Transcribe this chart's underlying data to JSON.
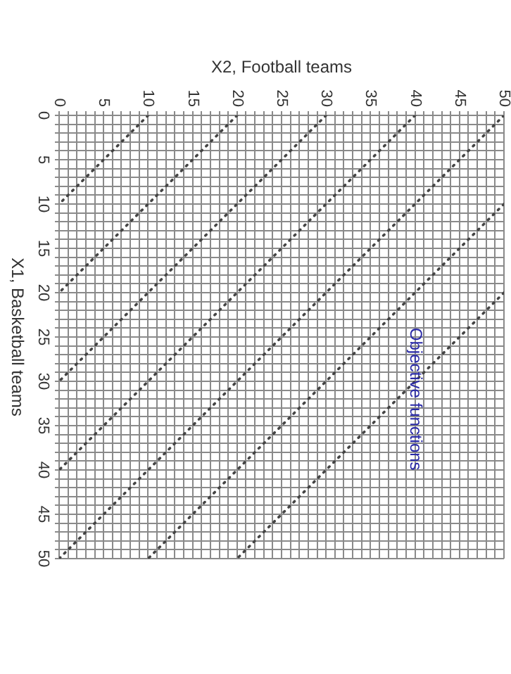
{
  "chart_data": {
    "type": "line",
    "xlabel": "X2, Football teams",
    "ylabel": "X1, Basketball teams",
    "annotations": [
      "Objective functions"
    ],
    "xlim": [
      0,
      50
    ],
    "ylim": [
      50,
      0
    ],
    "xticks": [
      0,
      {
        "value": 1,
        "label": null
      },
      {
        "value": 2,
        "label": null
      },
      {
        "value": 3,
        "label": null
      },
      {
        "value": 4,
        "label": null
      },
      5,
      {
        "value": 6,
        "label": null
      },
      {
        "value": 7,
        "label": null
      },
      {
        "value": 8,
        "label": null
      },
      {
        "value": 9,
        "label": null
      },
      10,
      {
        "value": 11,
        "label": null
      },
      {
        "value": 12,
        "label": null
      },
      {
        "value": 13,
        "label": null
      },
      {
        "value": 14,
        "label": null
      },
      15,
      {
        "value": 16,
        "label": null
      },
      {
        "value": 17,
        "label": null
      },
      {
        "value": 18,
        "label": null
      },
      {
        "value": 19,
        "label": null
      },
      20,
      {
        "value": 21,
        "label": null
      },
      {
        "value": 22,
        "label": null
      },
      {
        "value": 23,
        "label": null
      },
      {
        "value": 24,
        "label": null
      },
      25,
      {
        "value": 26,
        "label": null
      },
      {
        "value": 27,
        "label": null
      },
      {
        "value": 28,
        "label": null
      },
      {
        "value": 29,
        "label": null
      },
      30,
      {
        "value": 31,
        "label": null
      },
      {
        "value": 32,
        "label": null
      },
      {
        "value": 33,
        "label": null
      },
      {
        "value": 34,
        "label": null
      },
      35,
      {
        "value": 36,
        "label": null
      },
      {
        "value": 37,
        "label": null
      },
      {
        "value": 38,
        "label": null
      },
      {
        "value": 39,
        "label": null
      },
      40,
      {
        "value": 41,
        "label": null
      },
      {
        "value": 42,
        "label": null
      },
      {
        "value": 43,
        "label": null
      },
      {
        "value": 44,
        "label": null
      },
      45,
      {
        "value": 46,
        "label": null
      },
      {
        "value": 47,
        "label": null
      },
      {
        "value": 48,
        "label": null
      },
      {
        "value": 49,
        "label": null
      },
      50
    ],
    "yticks": [
      0,
      {
        "value": 1,
        "label": null
      },
      {
        "value": 2,
        "label": null
      },
      {
        "value": 3,
        "label": null
      },
      {
        "value": 4,
        "label": null
      },
      5,
      {
        "value": 6,
        "label": null
      },
      {
        "value": 7,
        "label": null
      },
      {
        "value": 8,
        "label": null
      },
      {
        "value": 9,
        "label": null
      },
      10,
      {
        "value": 11,
        "label": null
      },
      {
        "value": 12,
        "label": null
      },
      {
        "value": 13,
        "label": null
      },
      {
        "value": 14,
        "label": null
      },
      15,
      {
        "value": 16,
        "label": null
      },
      {
        "value": 17,
        "label": null
      },
      {
        "value": 18,
        "label": null
      },
      {
        "value": 19,
        "label": null
      },
      20,
      {
        "value": 21,
        "label": null
      },
      {
        "value": 22,
        "label": null
      },
      {
        "value": 23,
        "label": null
      },
      {
        "value": 24,
        "label": null
      },
      25,
      {
        "value": 26,
        "label": null
      },
      {
        "value": 27,
        "label": null
      },
      {
        "value": 28,
        "label": null
      },
      {
        "value": 29,
        "label": null
      },
      30,
      {
        "value": 31,
        "label": null
      },
      {
        "value": 32,
        "label": null
      },
      {
        "value": 33,
        "label": null
      },
      {
        "value": 34,
        "label": null
      },
      35,
      {
        "value": 36,
        "label": null
      },
      {
        "value": 37,
        "label": null
      },
      {
        "value": 38,
        "label": null
      },
      {
        "value": 39,
        "label": null
      },
      40,
      {
        "value": 41,
        "label": null
      },
      {
        "value": 42,
        "label": null
      },
      {
        "value": 43,
        "label": null
      },
      {
        "value": 44,
        "label": null
      },
      45,
      {
        "value": 46,
        "label": null
      },
      {
        "value": 47,
        "label": null
      },
      {
        "value": 48,
        "label": null
      },
      {
        "value": 49,
        "label": null
      },
      50
    ],
    "grid": true,
    "marker": "none",
    "line_style": "dotted",
    "series": [
      {
        "color": "#444444",
        "x": [
          10,
          0
        ],
        "values": [
          0,
          10
        ]
      },
      {
        "color": "#444444",
        "x": [
          20,
          0
        ],
        "values": [
          0,
          20
        ]
      },
      {
        "color": "#444444",
        "x": [
          30,
          0
        ],
        "values": [
          0,
          30
        ]
      },
      {
        "color": "#444444",
        "x": [
          40,
          0
        ],
        "values": [
          0,
          40
        ]
      },
      {
        "color": "#444444",
        "x": [
          50,
          0
        ],
        "values": [
          0,
          50
        ]
      },
      {
        "color": "#444444",
        "x": [
          50,
          10
        ],
        "values": [
          10,
          50
        ]
      },
      {
        "color": "#444444",
        "x": [
          50,
          20
        ],
        "values": [
          20,
          50
        ]
      }
    ]
  }
}
